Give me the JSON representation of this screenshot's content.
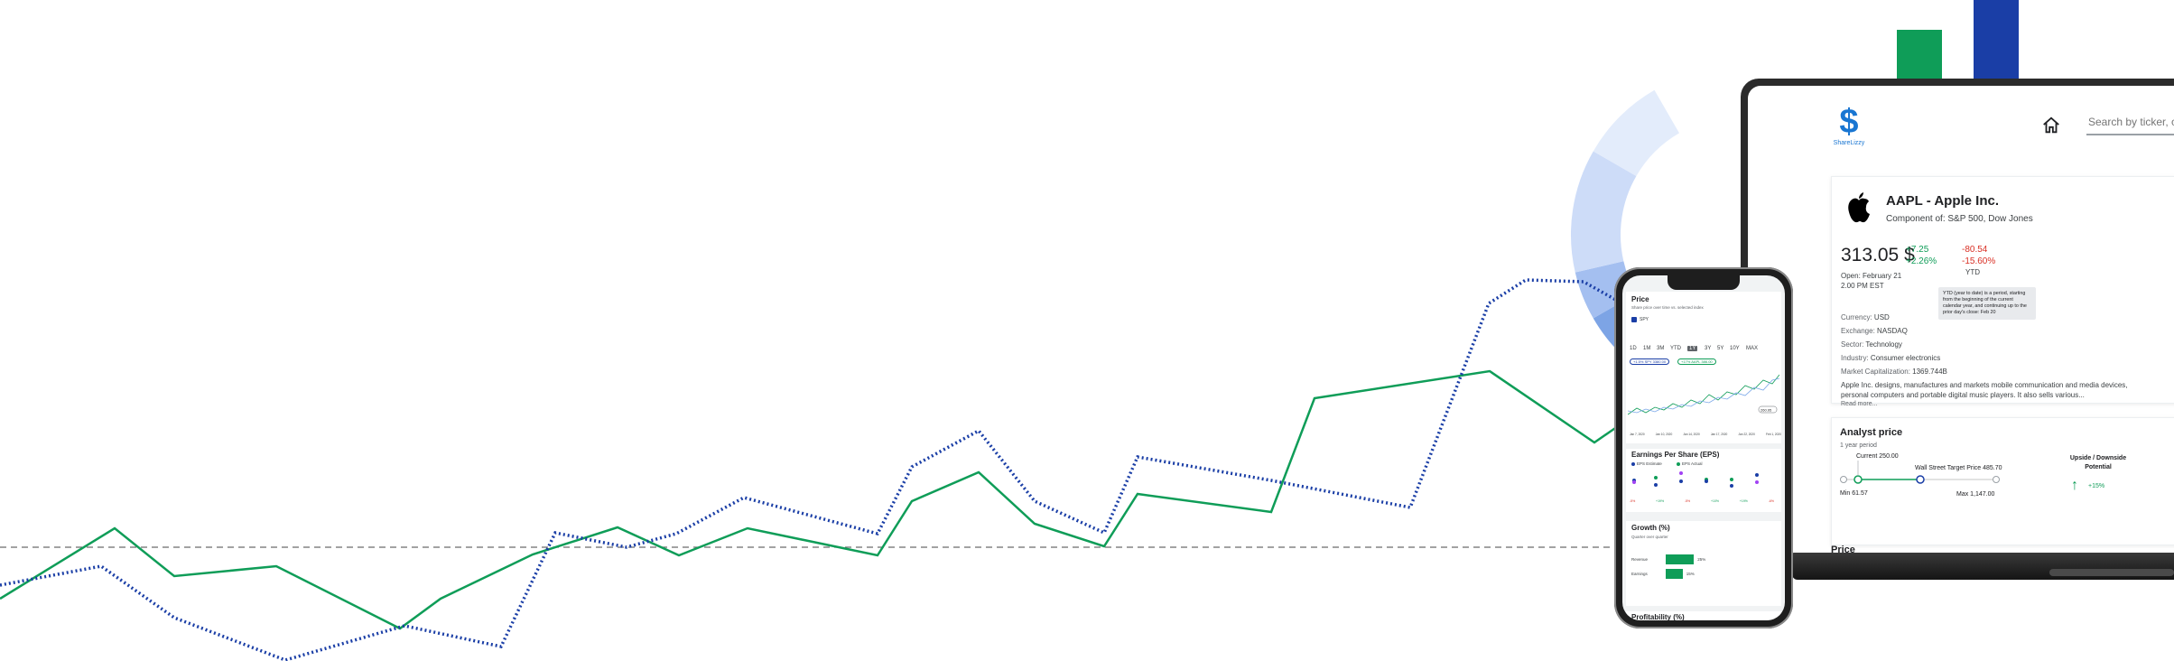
{
  "colors": {
    "green": "#0f9d58",
    "navy": "#1a3ea6",
    "red": "#d93025",
    "donut": [
      "#5b8dde",
      "#7da4e5",
      "#a4bff0",
      "#cddcf8",
      "#e3ecfb"
    ]
  },
  "laptop": {
    "logo_text": "ShareLizzy",
    "search_placeholder": "Search by ticker, company",
    "company": {
      "title": "AAPL - Apple Inc.",
      "component": "Component of: S&P 500, Dow Jones",
      "price": "313.05 $",
      "day_change_abs": "+7.25",
      "day_change_pct": "+2.26%",
      "ytd_change_abs": "-80.54",
      "ytd_change_pct": "-15.60%",
      "ytd_label": "YTD",
      "open_info": "Open: February 21 2.00 PM EST",
      "tooltip": "YTD (year to date) is a period, starting from the beginning of the current calendar year, and continuing up to the prior day's close: Feb 20",
      "info": [
        {
          "label": "Currency:",
          "value": "USD"
        },
        {
          "label": "Exchange:",
          "value": "NASDAQ"
        },
        {
          "label": "Sector:",
          "value": "Technology"
        },
        {
          "label": "Industry:",
          "value": "Consumer electronics"
        },
        {
          "label": "Market Capitalization:",
          "value": "1369.744B"
        }
      ],
      "description": "Apple Inc. designs, manufactures and markets mobile communication and media devices, personal computers and portable digital music players. It also sells various...",
      "read_more": "Read more..."
    },
    "analyst": {
      "title": "Analyst price",
      "subtitle": "1 year period",
      "current": "Current 250.00",
      "target": "Wall Street Target Price 485.70",
      "min": "Min 61.57",
      "max": "Max 1,147.00",
      "updown_line1": "Upside / Downside",
      "updown_line2": "Potential",
      "updown_pct": "+15%"
    },
    "next_section": "Price"
  },
  "phone": {
    "price_title": "Price",
    "price_sub": "Share price over time vs. selected index",
    "index_label": "SPY",
    "ranges": [
      "1D",
      "1M",
      "3M",
      "YTD",
      "1Y",
      "3Y",
      "5Y",
      "10Y",
      "MAX"
    ],
    "active_range": "1Y",
    "pill_1": "+1.5% SPY 3380.00",
    "pill_2": "+17% AAPL 386.00",
    "end_badge": "260.95",
    "xticks": [
      "Jan 7, 2020",
      "Jan 10, 2020",
      "Jan 14, 2020",
      "Jan 17, 2020",
      "Jan 22, 2020",
      "Feb 1, 2020"
    ],
    "eps_title": "Earnings Per Share (EPS)",
    "eps_estimate": "EPS Estimate",
    "eps_actual": "EPS Actual",
    "eps_pcts": [
      "-5%",
      "+19%",
      "-5%",
      "+10%",
      "+19%",
      "-6%"
    ],
    "growth_title": "Growth (%)",
    "growth_sub": "Quarter over quarter",
    "growth": [
      {
        "label": "Revenue",
        "value": 25,
        "text": "25%"
      },
      {
        "label": "Earnings",
        "value": 15,
        "text": "15%"
      }
    ],
    "next_title": "Profitability (%)"
  }
}
